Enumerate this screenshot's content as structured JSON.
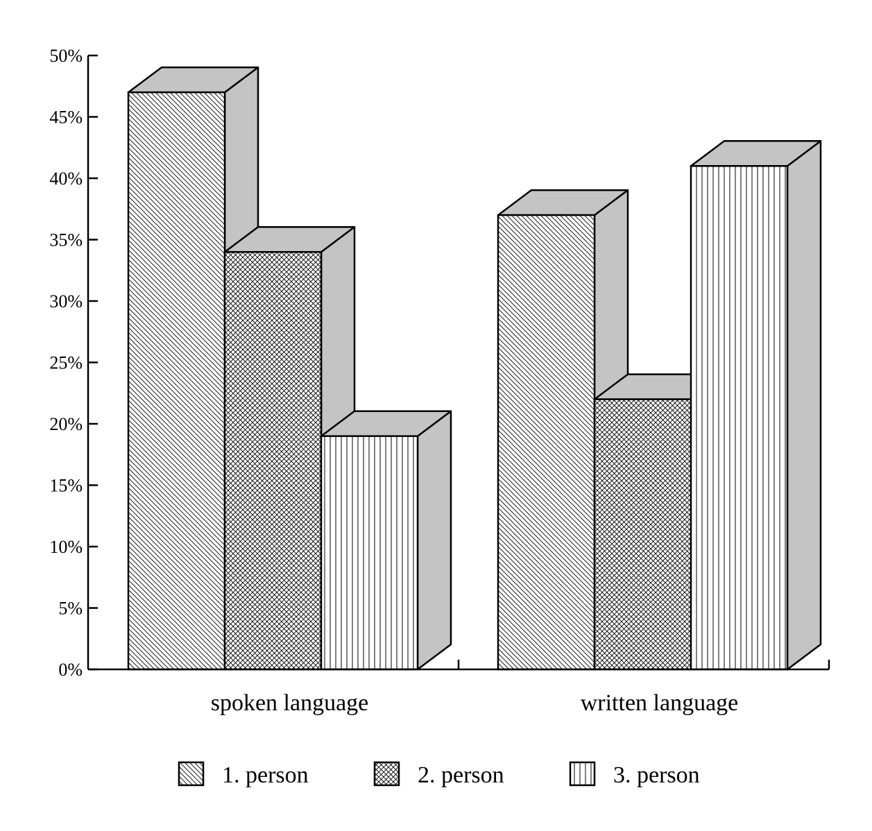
{
  "chart_data": {
    "type": "bar",
    "style": "3d-grouped-hatched",
    "categories": [
      "spoken language",
      "written language"
    ],
    "series": [
      {
        "name": "1. person",
        "values": [
          47,
          37
        ],
        "pattern": "diagonal-hatch"
      },
      {
        "name": "2. person",
        "values": [
          34,
          22
        ],
        "pattern": "cross-hatch"
      },
      {
        "name": "3. person",
        "values": [
          19,
          41
        ],
        "pattern": "vertical-hatch"
      }
    ],
    "ylim": [
      0,
      50
    ],
    "yticks": [
      "0%",
      "5%",
      "10%",
      "15%",
      "20%",
      "25%",
      "30%",
      "35%",
      "40%",
      "45%",
      "50%"
    ],
    "xlabel": "",
    "ylabel": "",
    "title": "",
    "legend_position": "bottom",
    "colors": {
      "line": "#000000",
      "face": "#ffffff",
      "side": "#c4c4c4"
    }
  }
}
